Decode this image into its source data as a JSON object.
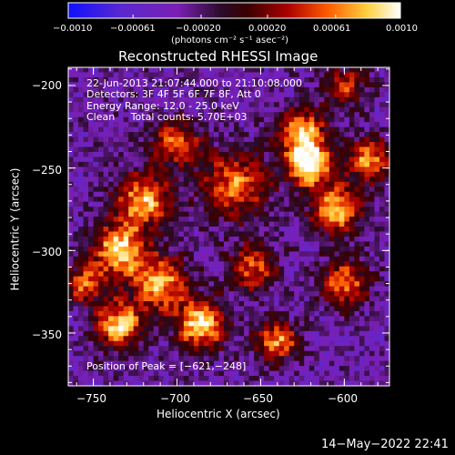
{
  "chart_data": {
    "type": "heatmap",
    "title": "Reconstructed RHESSI Image",
    "xlabel": "Heliocentric X (arcsec)",
    "ylabel": "Heliocentric Y (arcsec)",
    "xlim": [
      -765,
      -573
    ],
    "ylim": [
      -382,
      -189
    ],
    "x_ticks": [
      -750,
      -700,
      -650,
      -600
    ],
    "y_ticks": [
      -200,
      -250,
      -300,
      -350
    ],
    "x_tick_labels": [
      "−750",
      "−700",
      "−650",
      "−600"
    ],
    "y_tick_labels": [
      "−200",
      "−250",
      "−300",
      "−350"
    ],
    "colorbar": {
      "min": -0.001,
      "max": 0.001,
      "tick_values": [
        -0.001,
        -0.00061,
        -0.0002,
        0.0002,
        0.00061,
        0.001
      ],
      "tick_labels": [
        "−0.0010",
        "−0.00061",
        "−0.00020",
        "0.00020",
        "0.00061",
        "0.0010"
      ],
      "unit_label": "(photons cm⁻² s⁻¹ asec⁻²)",
      "colors": [
        "#1010ff",
        "#7a1fb4",
        "#3a0a3a",
        "#8a0000",
        "#ff5a00",
        "#ffd040",
        "#ffffff"
      ]
    },
    "annotations": [
      "22-Jun-2013 21:07:44.000 to 21:10:08.000",
      "Detectors: 3F 4F 5F 6F 7F 8F, Att 0",
      "Energy Range: 12.0 - 25.0 keV",
      "Clean     Total counts: 5.70E+03"
    ],
    "peak_label": "Position of Peak = [−621,−248]",
    "peak": [
      -621,
      -248
    ],
    "bright_sources": [
      {
        "x": -621,
        "y": -248,
        "level": 1.0,
        "sigma": 9
      },
      {
        "x": -625,
        "y": -228,
        "level": 0.75,
        "sigma": 10
      },
      {
        "x": -605,
        "y": -275,
        "level": 0.75,
        "sigma": 11
      },
      {
        "x": -665,
        "y": -260,
        "level": 0.65,
        "sigma": 14
      },
      {
        "x": -700,
        "y": -235,
        "level": 0.6,
        "sigma": 10
      },
      {
        "x": -720,
        "y": -270,
        "level": 0.75,
        "sigma": 12
      },
      {
        "x": -735,
        "y": -300,
        "level": 0.85,
        "sigma": 11
      },
      {
        "x": -710,
        "y": -320,
        "level": 0.75,
        "sigma": 12
      },
      {
        "x": -685,
        "y": -345,
        "level": 0.9,
        "sigma": 10
      },
      {
        "x": -735,
        "y": -345,
        "level": 0.8,
        "sigma": 10
      },
      {
        "x": -655,
        "y": -310,
        "level": 0.6,
        "sigma": 10
      },
      {
        "x": -640,
        "y": -355,
        "level": 0.7,
        "sigma": 9
      },
      {
        "x": -600,
        "y": -320,
        "level": 0.65,
        "sigma": 10
      },
      {
        "x": -585,
        "y": -245,
        "level": 0.7,
        "sigma": 9
      },
      {
        "x": -600,
        "y": -200,
        "level": 0.5,
        "sigma": 9
      },
      {
        "x": -755,
        "y": -320,
        "level": 0.6,
        "sigma": 8
      }
    ]
  },
  "timestamp": "14−May−2022 22:41"
}
